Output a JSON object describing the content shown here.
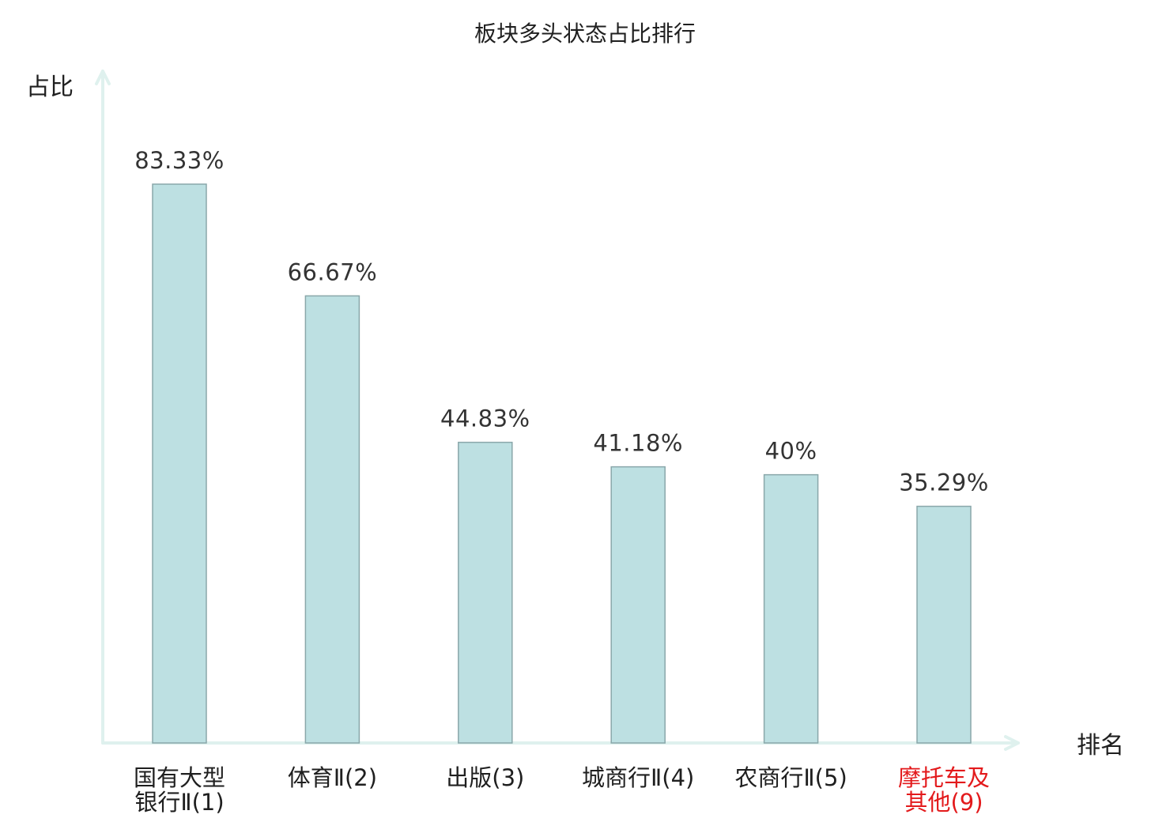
{
  "chart_data": {
    "type": "bar",
    "title": "板块多头状态占比排行",
    "ylabel": "占比",
    "xlabel": "排名",
    "grid": false,
    "legend": false,
    "ylim": [
      0,
      100
    ],
    "categories": [
      {
        "lines": [
          "国有大型",
          "银行Ⅱ(1)"
        ],
        "highlight": false
      },
      {
        "lines": [
          "体育Ⅱ(2)"
        ],
        "highlight": false
      },
      {
        "lines": [
          "出版(3)"
        ],
        "highlight": false
      },
      {
        "lines": [
          "城商行Ⅱ(4)"
        ],
        "highlight": false
      },
      {
        "lines": [
          "农商行Ⅱ(5)"
        ],
        "highlight": false
      },
      {
        "lines": [
          "摩托车及",
          "其他(9)"
        ],
        "highlight": true
      }
    ],
    "values": [
      83.33,
      66.67,
      44.83,
      41.18,
      40,
      35.29
    ],
    "value_labels": [
      "83.33%",
      "66.67%",
      "44.83%",
      "41.18%",
      "40%",
      "35.29%"
    ]
  },
  "colors": {
    "bar_fill": "#bde0e2",
    "bar_stroke": "#8aa7aa",
    "axis": "#dff1ee",
    "text": "#1f1f1f",
    "value_text": "#333333",
    "highlight": "#e31a1c"
  }
}
